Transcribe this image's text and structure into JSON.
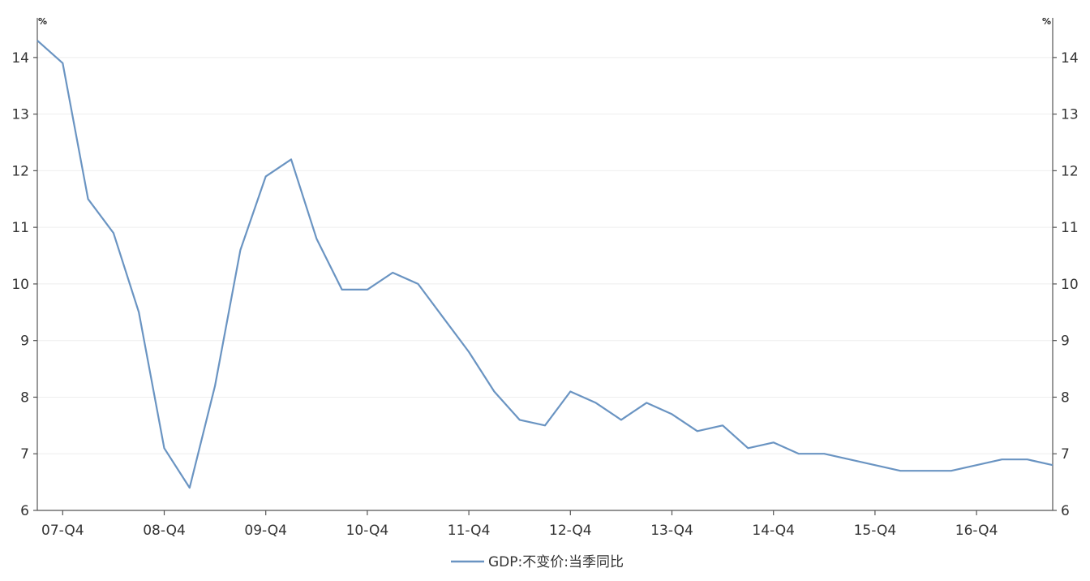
{
  "chart_data": {
    "type": "line",
    "title": "",
    "xlabel": "",
    "ylabel_left_unit": "%",
    "ylabel_right_unit": "%",
    "ylim": [
      6,
      14.7
    ],
    "yticks": [
      6,
      7,
      8,
      9,
      10,
      11,
      12,
      13,
      14
    ],
    "grid": true,
    "legend_position": "bottom",
    "x_tick_labels": [
      "07-Q4",
      "08-Q4",
      "09-Q4",
      "10-Q4",
      "11-Q4",
      "12-Q4",
      "13-Q4",
      "14-Q4",
      "15-Q4",
      "16-Q4"
    ],
    "x_tick_indices": [
      1,
      5,
      9,
      13,
      17,
      21,
      25,
      29,
      33,
      37
    ],
    "series": [
      {
        "name": "GDP:不变价:当季同比",
        "color": "#6a94c2",
        "x": [
          "07-Q3",
          "07-Q4",
          "08-Q1",
          "08-Q2",
          "08-Q3",
          "08-Q4",
          "09-Q1",
          "09-Q2",
          "09-Q3",
          "09-Q4",
          "10-Q1",
          "10-Q2",
          "10-Q3",
          "10-Q4",
          "11-Q1",
          "11-Q2",
          "11-Q3",
          "11-Q4",
          "12-Q1",
          "12-Q2",
          "12-Q3",
          "12-Q4",
          "13-Q1",
          "13-Q2",
          "13-Q3",
          "13-Q4",
          "14-Q1",
          "14-Q2",
          "14-Q3",
          "14-Q4",
          "15-Q1",
          "15-Q2",
          "15-Q3",
          "15-Q4",
          "16-Q1",
          "16-Q2",
          "16-Q3",
          "16-Q4",
          "17-Q1",
          "17-Q2",
          "17-Q3"
        ],
        "values": [
          14.3,
          13.9,
          11.5,
          10.9,
          9.5,
          7.1,
          6.4,
          8.2,
          10.6,
          11.9,
          12.2,
          10.8,
          9.9,
          9.9,
          10.2,
          10.0,
          9.4,
          8.8,
          8.1,
          7.6,
          7.5,
          8.1,
          7.9,
          7.6,
          7.9,
          7.7,
          7.4,
          7.5,
          7.1,
          7.2,
          7.0,
          7.0,
          6.9,
          6.8,
          6.7,
          6.7,
          6.7,
          6.8,
          6.9,
          6.9,
          6.8
        ]
      }
    ]
  }
}
